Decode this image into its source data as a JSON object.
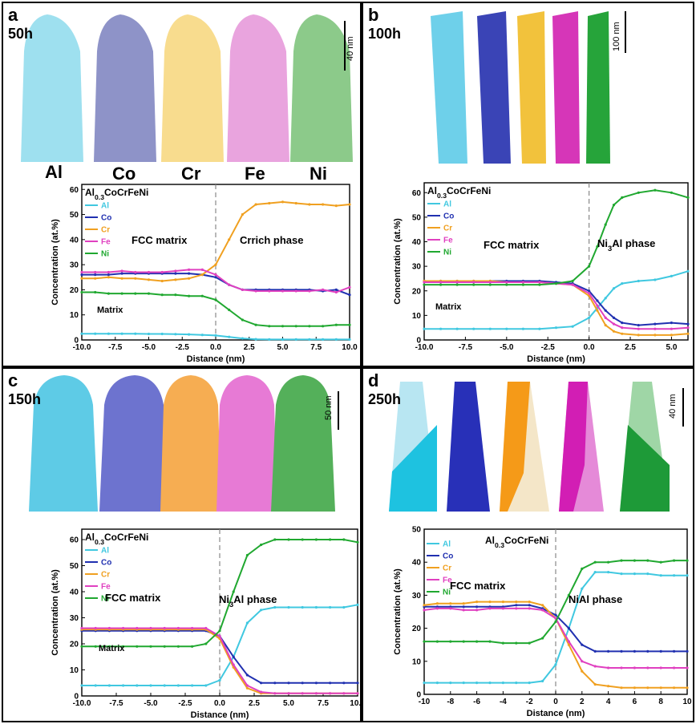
{
  "panels": [
    {
      "letter": "a",
      "time": "50h",
      "scale": "40 nm",
      "element_labels": [
        "Al",
        "Co",
        "Cr",
        "Fe",
        "Ni"
      ]
    },
    {
      "letter": "b",
      "time": "100h",
      "scale": "100 nm"
    },
    {
      "letter": "c",
      "time": "150h",
      "scale": "50 nm"
    },
    {
      "letter": "d",
      "time": "250h",
      "scale": "40 nm"
    }
  ],
  "element_colors": {
    "Al": "#40c8e0",
    "Co": "#2030b0",
    "Cr": "#f0a020",
    "Fe": "#e040c0",
    "Ni": "#20a830"
  },
  "chart_data": [
    {
      "type": "line",
      "title": "Al0.3CoCrFeNi",
      "xlabel": "Distance (nm)",
      "ylabel": "Concentration (at.%)",
      "xlim": [
        -10,
        10
      ],
      "ylim": [
        0,
        62
      ],
      "xticks": [
        "-10.0",
        "-7.5",
        "-5.0",
        "-2.5",
        "0.0",
        "2.5",
        "5.0",
        "7.5",
        "10.0"
      ],
      "yticks": [
        "0",
        "10",
        "20",
        "30",
        "40",
        "50",
        "60"
      ],
      "annotations": [
        "FCC matrix",
        "Cr-rich phase",
        "Matrix"
      ],
      "x": [
        -10,
        -9,
        -8,
        -7,
        -6,
        -5,
        -4,
        -3,
        -2,
        -1,
        0,
        1,
        2,
        3,
        4,
        5,
        6,
        7,
        8,
        9,
        10
      ],
      "series": [
        {
          "name": "Al",
          "color": "#40c8e0",
          "values": [
            2.5,
            2.5,
            2.5,
            2.5,
            2.5,
            2.4,
            2.4,
            2.3,
            2.2,
            2.0,
            1.8,
            1.2,
            0.6,
            0.3,
            0.2,
            0.2,
            0.2,
            0.2,
            0.2,
            0.2,
            0.2
          ]
        },
        {
          "name": "Co",
          "color": "#2030b0",
          "values": [
            26,
            26,
            26,
            26.5,
            26.5,
            26.5,
            26.5,
            26.5,
            26.5,
            26,
            25,
            22,
            20,
            20,
            20,
            20,
            20,
            20,
            19.5,
            20,
            18
          ]
        },
        {
          "name": "Cr",
          "color": "#f0a020",
          "values": [
            24.5,
            24.5,
            25,
            24.5,
            24.5,
            24,
            23.5,
            24,
            24.5,
            26,
            30,
            40,
            50,
            54,
            54.5,
            55,
            54.5,
            54,
            54,
            53.5,
            54
          ]
        },
        {
          "name": "Fe",
          "color": "#e040c0",
          "values": [
            27,
            27,
            27,
            27.5,
            27,
            27,
            27,
            27.5,
            28,
            28,
            26,
            22,
            20,
            19.5,
            19.5,
            19.5,
            19.5,
            19.5,
            20,
            19,
            21
          ]
        },
        {
          "name": "Ni",
          "color": "#20a830",
          "values": [
            19,
            19,
            18.5,
            18.5,
            18.5,
            18.5,
            18,
            18,
            17.5,
            17.5,
            16,
            12,
            8,
            6,
            5.5,
            5.5,
            5.5,
            5.5,
            5.5,
            6,
            6
          ]
        }
      ]
    },
    {
      "type": "line",
      "title": "Al0.3CoCrFeNi",
      "xlabel": "Distance (nm)",
      "ylabel": "Concentration (at.%)",
      "xlim": [
        -10,
        6
      ],
      "ylim": [
        0,
        64
      ],
      "xticks": [
        "-10.0",
        "-7.5",
        "-5.0",
        "-2.5",
        "0.0",
        "2.5",
        "5.0"
      ],
      "yticks": [
        "0",
        "10",
        "20",
        "30",
        "40",
        "50",
        "60"
      ],
      "annotations": [
        "FCC matrix",
        "Ni3Al phase",
        "Matrix"
      ],
      "x": [
        -10,
        -9,
        -8,
        -7,
        -6,
        -5,
        -4,
        -3,
        -2,
        -1,
        0,
        0.5,
        1,
        1.5,
        2,
        3,
        4,
        5,
        6
      ],
      "series": [
        {
          "name": "Al",
          "color": "#40c8e0",
          "values": [
            4.5,
            4.5,
            4.5,
            4.5,
            4.5,
            4.5,
            4.5,
            4.5,
            5,
            5.5,
            9,
            13,
            17,
            21,
            23,
            24,
            24.5,
            26,
            28
          ]
        },
        {
          "name": "Co",
          "color": "#2030b0",
          "values": [
            24,
            24,
            24,
            24,
            24,
            24,
            24,
            24,
            23.5,
            23,
            20,
            16,
            12,
            9,
            7,
            6,
            6.5,
            7,
            6.5
          ]
        },
        {
          "name": "Cr",
          "color": "#f0a020",
          "values": [
            24,
            24,
            24,
            24,
            24,
            23.5,
            23.5,
            23.5,
            23,
            22.5,
            18,
            12,
            6,
            3.5,
            2.5,
            2,
            2,
            2,
            2.5
          ]
        },
        {
          "name": "Fe",
          "color": "#e040c0",
          "values": [
            23.5,
            23.5,
            23.5,
            23.5,
            23.5,
            23.5,
            23.5,
            23.5,
            23,
            22.5,
            19,
            14,
            9,
            6.5,
            5,
            4.5,
            4.5,
            4.5,
            5
          ]
        },
        {
          "name": "Ni",
          "color": "#20a830",
          "values": [
            22.5,
            22.5,
            22.5,
            22.5,
            22.5,
            22.5,
            22.5,
            22.5,
            23,
            24,
            30,
            38,
            47,
            55,
            58,
            60,
            61,
            60,
            58
          ]
        }
      ]
    },
    {
      "type": "line",
      "title": "Al0.3CoCrFeNi",
      "xlabel": "Distance (nm)",
      "ylabel": "Concentration (at.%)",
      "xlim": [
        -10,
        10
      ],
      "ylim": [
        0,
        64
      ],
      "xticks": [
        "-10.0",
        "-7.5",
        "-5.0",
        "-2.5",
        "0.0",
        "2.5",
        "5.0",
        "7.5",
        "10.0"
      ],
      "yticks": [
        "0",
        "10",
        "20",
        "30",
        "40",
        "50",
        "60"
      ],
      "annotations": [
        "Ni3Al  phase",
        "FCC matrix",
        "Matrix"
      ],
      "x": [
        -10,
        -9,
        -8,
        -7,
        -6,
        -5,
        -4,
        -3,
        -2,
        -1,
        0,
        1,
        2,
        3,
        4,
        5,
        6,
        7,
        8,
        9,
        10
      ],
      "series": [
        {
          "name": "Al",
          "color": "#40c8e0",
          "values": [
            4,
            4,
            4,
            4,
            4,
            4,
            4,
            4,
            4,
            4,
            6,
            15,
            28,
            33,
            34,
            34,
            34,
            34,
            34,
            34,
            35
          ]
        },
        {
          "name": "Co",
          "color": "#2030b0",
          "values": [
            25,
            25,
            25,
            25,
            25,
            25,
            25,
            25,
            25,
            25,
            23,
            15,
            8,
            5,
            5,
            5,
            5,
            5,
            5,
            5,
            5
          ]
        },
        {
          "name": "Cr",
          "color": "#f0a020",
          "values": [
            25.5,
            25.5,
            25.5,
            25.5,
            25.5,
            25.5,
            25.5,
            25.5,
            25.5,
            25.5,
            22,
            11,
            3,
            1,
            1,
            1,
            1,
            1,
            1,
            1,
            1
          ]
        },
        {
          "name": "Fe",
          "color": "#e040c0",
          "values": [
            26,
            26,
            26,
            26,
            26,
            26,
            26,
            26,
            26,
            26,
            23,
            12,
            4,
            1.5,
            1,
            1,
            1,
            1,
            1,
            1,
            1
          ]
        },
        {
          "name": "Ni",
          "color": "#20a830",
          "values": [
            19,
            19,
            19,
            19,
            19,
            19,
            19,
            19,
            19,
            20,
            25,
            40,
            54,
            58,
            60,
            60,
            60,
            60,
            60,
            60,
            59
          ]
        }
      ]
    },
    {
      "type": "line",
      "title": "Al0.3CoCrFeNi",
      "xlabel": "Distance (nm)",
      "ylabel": "Concentration (at.%)",
      "xlim": [
        -10,
        10
      ],
      "ylim": [
        0,
        50
      ],
      "xticks": [
        "-10",
        "-8",
        "-6",
        "-4",
        "-2",
        "0",
        "2",
        "4",
        "6",
        "8",
        "10"
      ],
      "yticks": [
        "0",
        "10",
        "20",
        "30",
        "40",
        "50"
      ],
      "annotations": [
        "FCC matrix",
        "NiAl phase"
      ],
      "x": [
        -10,
        -9,
        -8,
        -7,
        -6,
        -5,
        -4,
        -3,
        -2,
        -1,
        0,
        1,
        2,
        3,
        4,
        5,
        6,
        7,
        8,
        9,
        10
      ],
      "series": [
        {
          "name": "Al",
          "color": "#40c8e0",
          "values": [
            3.5,
            3.5,
            3.5,
            3.5,
            3.5,
            3.5,
            3.5,
            3.5,
            3.5,
            4,
            9,
            20,
            32,
            37,
            37,
            36.5,
            36.5,
            36.5,
            36,
            36,
            36
          ]
        },
        {
          "name": "Co",
          "color": "#2030b0",
          "values": [
            26.5,
            26.5,
            26.5,
            26.5,
            26.5,
            26.5,
            26.5,
            27,
            27,
            26,
            24,
            20,
            15,
            13,
            13,
            13,
            13,
            13,
            13,
            13,
            13
          ]
        },
        {
          "name": "Cr",
          "color": "#f0a020",
          "values": [
            27,
            27.5,
            27.5,
            27.5,
            28,
            28,
            28,
            28,
            28,
            27,
            23,
            15,
            7,
            3,
            2.5,
            2,
            2,
            2,
            2,
            2,
            2
          ]
        },
        {
          "name": "Fe",
          "color": "#e040c0",
          "values": [
            25.5,
            26,
            26,
            25.5,
            25.5,
            26,
            26,
            26,
            26,
            25.5,
            23,
            16,
            10,
            8.5,
            8,
            8,
            8,
            8,
            8,
            8,
            8
          ]
        },
        {
          "name": "Ni",
          "color": "#20a830",
          "values": [
            16,
            16,
            16,
            16,
            16,
            16,
            15.5,
            15.5,
            15.5,
            17,
            22,
            30,
            38,
            40,
            40,
            40.5,
            40.5,
            40.5,
            40,
            40.5,
            40.5
          ]
        }
      ]
    }
  ]
}
